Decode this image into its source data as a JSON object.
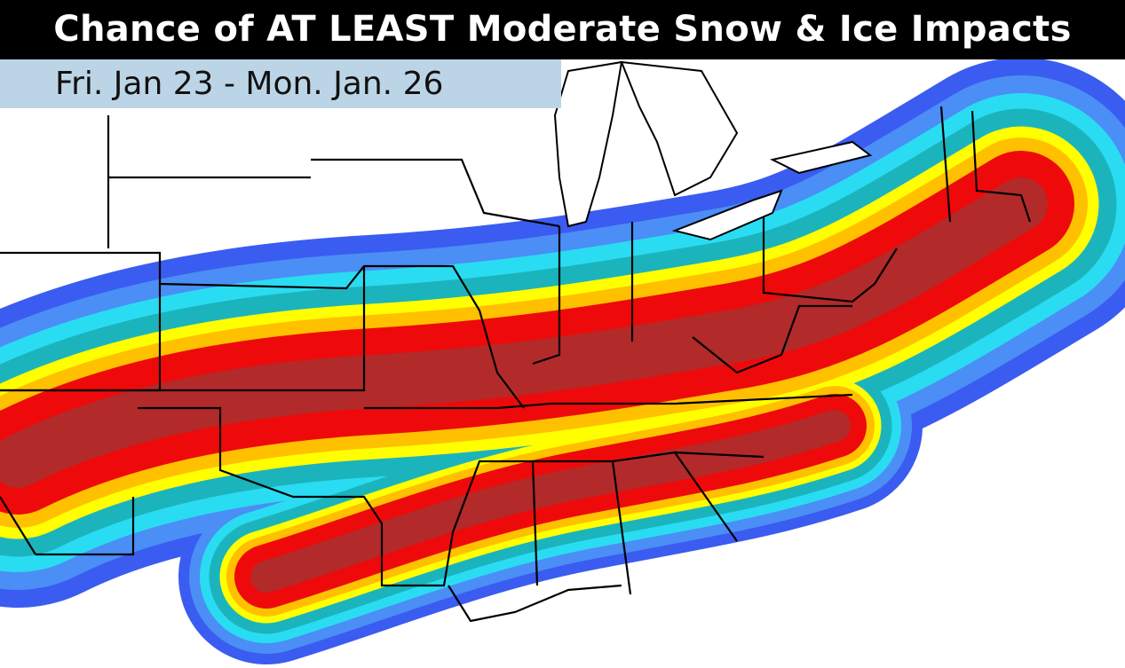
{
  "header": {
    "title": "Chance of AT LEAST Moderate Snow & Ice Impacts",
    "date_range": "Fri. Jan 23 - Mon. Jan. 26"
  },
  "map": {
    "region": "Eastern United States",
    "legend_colors_low_to_high": [
      "#3a5cf0",
      "#4b8ef5",
      "#2adcf2",
      "#1cb4bc",
      "#ffff00",
      "#ffc000",
      "#ee0a0a",
      "#b22a2a"
    ],
    "header_colors": {
      "title_bg": "#000000",
      "subtitle_bg": "#bcd5e6"
    }
  }
}
